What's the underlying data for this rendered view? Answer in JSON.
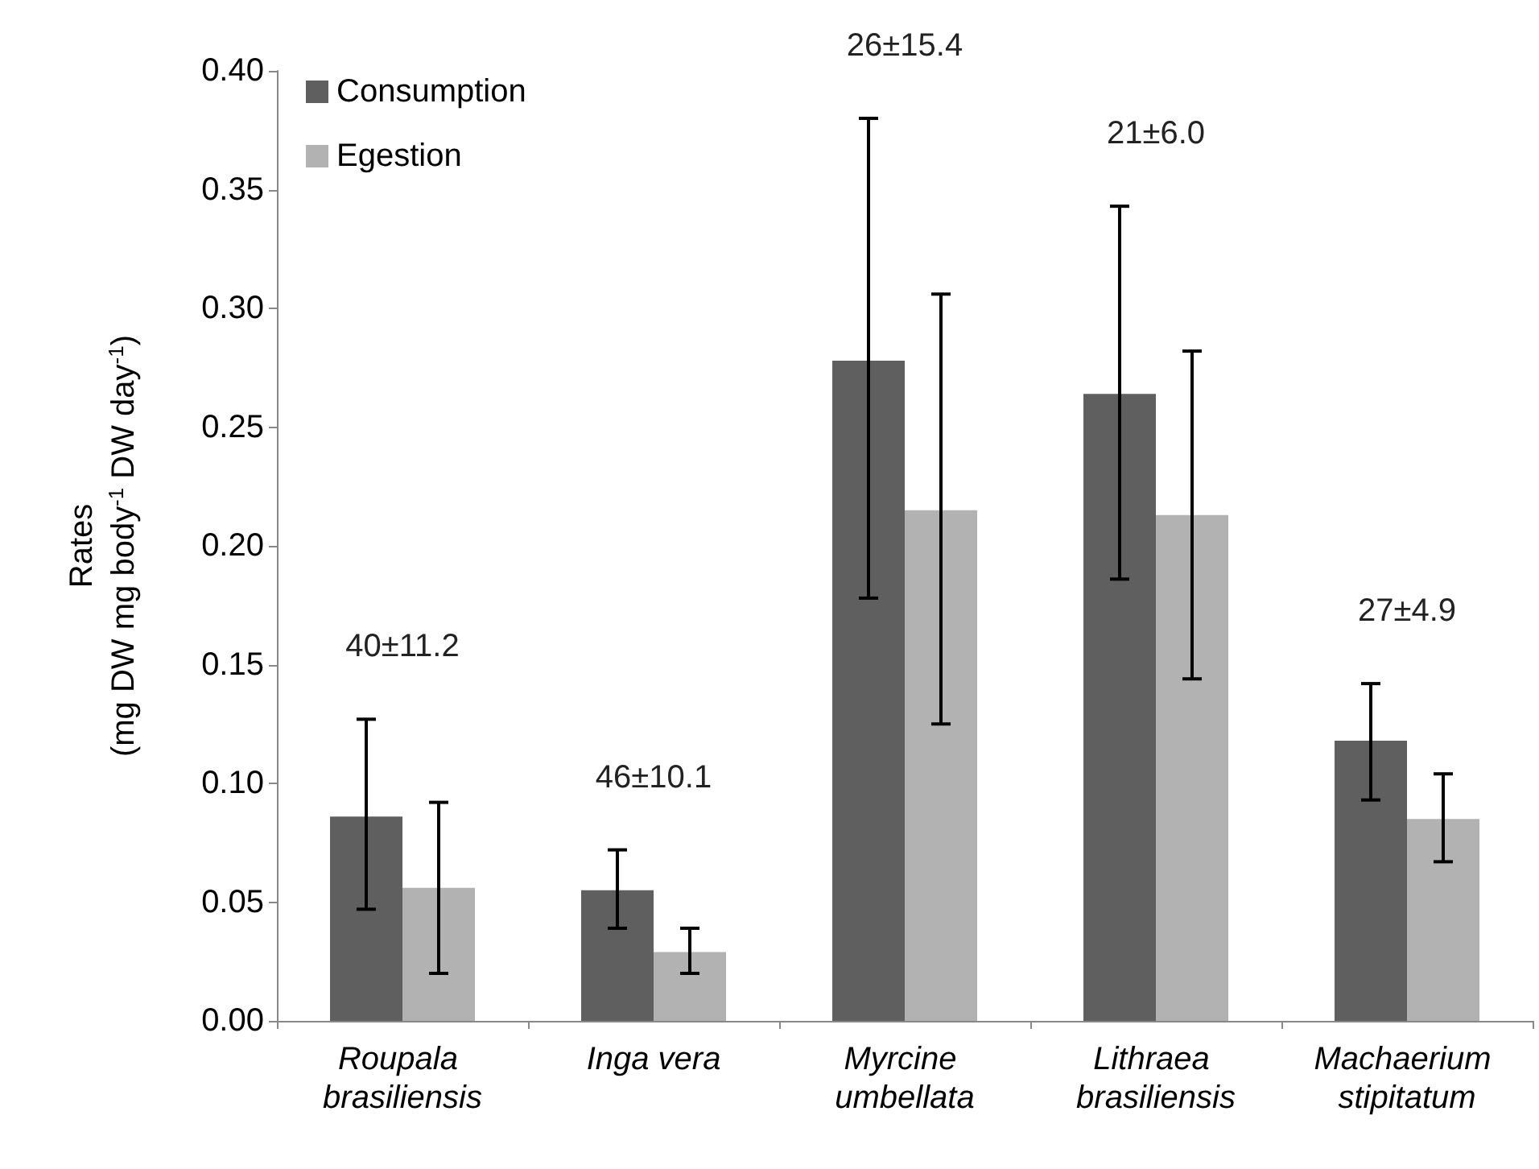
{
  "chart_data": {
    "type": "bar",
    "ylabel": "Rates\n(mg DW mg body$^{-1}$ DW day$^{-1}$)",
    "categories": [
      "Roupala brasiliensis",
      "Inga vera",
      "Myrcine umbellata",
      "Lithraea brasiliensis",
      "Machaerium stipitatum"
    ],
    "series": [
      {
        "name": "Consumption",
        "color": "#5f5f5f",
        "values": [
          0.086,
          0.055,
          0.278,
          0.264,
          0.118
        ],
        "errors": [
          [
            0.047,
            0.127
          ],
          [
            0.039,
            0.072
          ],
          [
            0.178,
            0.38
          ],
          [
            0.186,
            0.343
          ],
          [
            0.093,
            0.142
          ]
        ]
      },
      {
        "name": "Egestion",
        "color": "#b2b2b2",
        "values": [
          0.056,
          0.029,
          0.215,
          0.213,
          0.085
        ],
        "errors": [
          [
            0.02,
            0.092
          ],
          [
            0.02,
            0.039
          ],
          [
            0.125,
            0.306
          ],
          [
            0.144,
            0.282
          ],
          [
            0.067,
            0.104
          ]
        ]
      }
    ],
    "annotations": [
      "40±11.2",
      "46±10.1",
      "26±15.4",
      "21±6.0",
      "27±4.9"
    ],
    "ylim": [
      0,
      0.4
    ],
    "yticks": [
      {
        "value": 0,
        "label": "0.00"
      },
      {
        "value": 0.05,
        "label": "0.05"
      },
      {
        "value": 0.1,
        "label": "0.10"
      },
      {
        "value": 0.15,
        "label": "0.15"
      },
      {
        "value": 0.2,
        "label": "0.20"
      },
      {
        "value": 0.25,
        "label": "0.25"
      },
      {
        "value": 0.3,
        "label": "0.30"
      },
      {
        "value": 0.35,
        "label": "0.35"
      },
      {
        "value": 0.4,
        "label": "0.40"
      }
    ],
    "grid": false,
    "legend": "top left"
  }
}
